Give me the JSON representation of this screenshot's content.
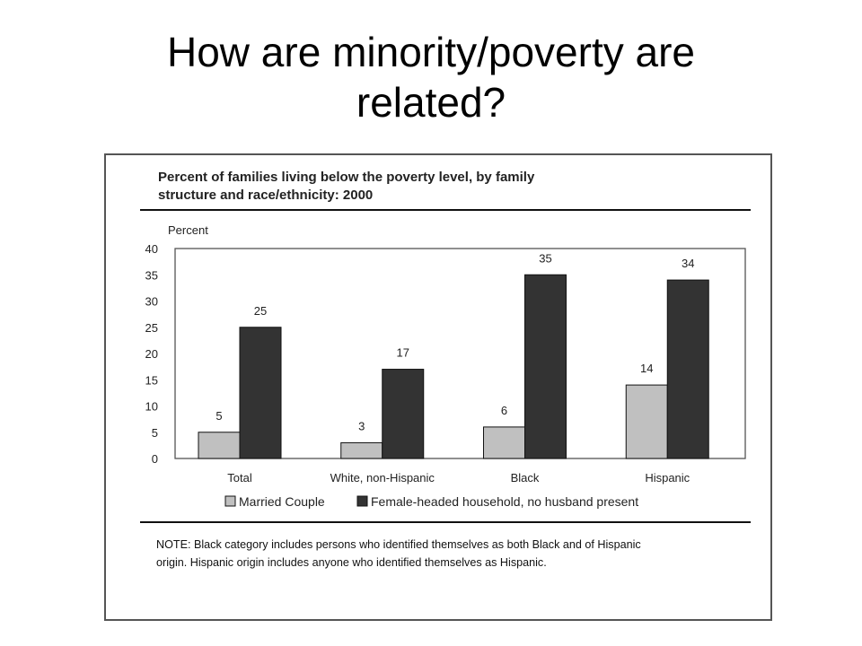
{
  "slide": {
    "title_line1": "How are minority/poverty are",
    "title_line2": "related?"
  },
  "figure": {
    "note_line1": "NOTE: Black category includes persons who identified themselves as both Black and of Hispanic",
    "note_line2": "origin. Hispanic origin includes anyone who identified themselves as Hispanic."
  },
  "chart_data": {
    "type": "bar",
    "title": "Percent of families living below the poverty level, by family structure and race/ethnicity: 2000",
    "title_line1": "Percent of families living below the poverty level, by family",
    "title_line2": "structure and race/ethnicity: 2000",
    "ylabel": "Percent",
    "xlabel": "",
    "ylim": [
      0,
      40
    ],
    "yticks": [
      0,
      5,
      10,
      15,
      20,
      25,
      30,
      35,
      40
    ],
    "categories": [
      "Total",
      "White, non-Hispanic",
      "Black",
      "Hispanic"
    ],
    "series": [
      {
        "name": "Married Couple",
        "values": [
          5,
          3,
          6,
          14
        ],
        "color": "#c0c0c0"
      },
      {
        "name": "Female-headed household, no husband present",
        "values": [
          25,
          17,
          35,
          34
        ],
        "color": "#333333"
      }
    ],
    "grid": false,
    "legend_position": "bottom"
  }
}
